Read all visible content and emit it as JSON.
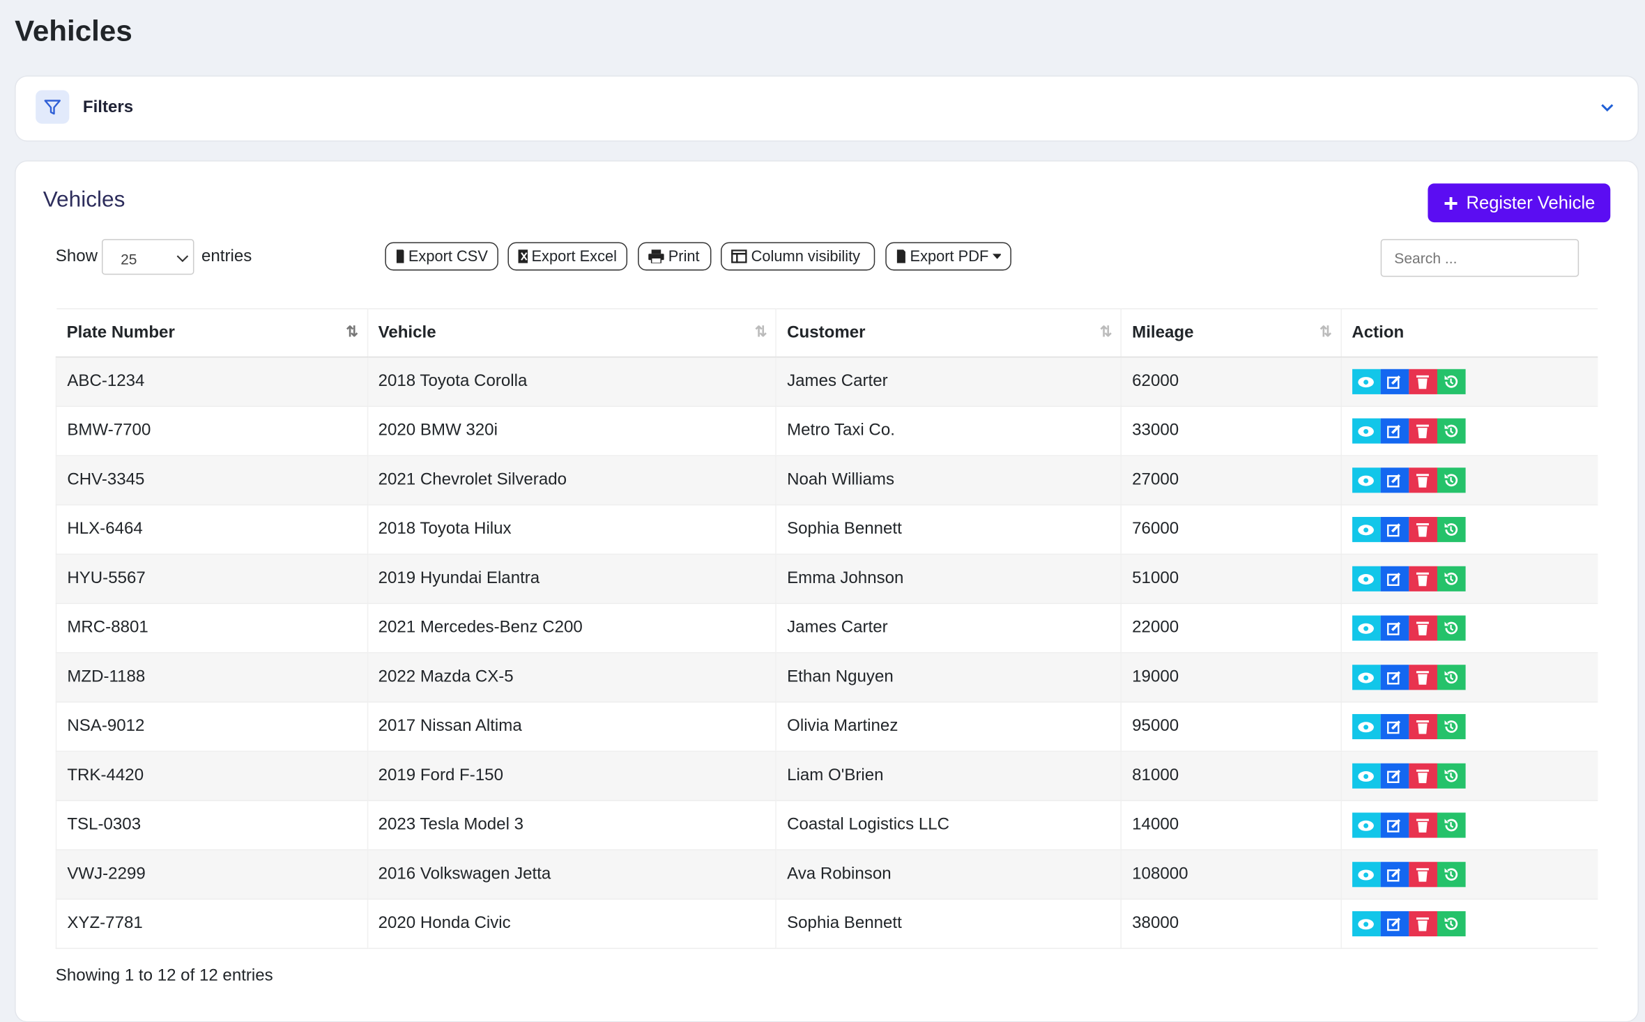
{
  "header": {
    "title": "Vehicles"
  },
  "filters": {
    "label": "Filters"
  },
  "card": {
    "title": "Vehicles",
    "register_button": "Register Vehicle",
    "length": {
      "show": "Show",
      "value": "25",
      "entries": "entries"
    },
    "buttons": [
      "Export CSV",
      "Export Excel",
      "Print",
      "Column visibility",
      "Export PDF"
    ],
    "search_placeholder": "Search ..."
  },
  "table": {
    "headers": [
      "Plate Number",
      "Vehicle",
      "Customer",
      "Mileage",
      "Action"
    ],
    "rows": [
      [
        "ABC-1234",
        "2018 Toyota Corolla",
        "James Carter",
        62000
      ],
      [
        "BMW-7700",
        "2020 BMW 320i",
        "Metro Taxi Co.",
        33000
      ],
      [
        "CHV-3345",
        "2021 Chevrolet Silverado",
        "Noah Williams",
        27000
      ],
      [
        "HLX-6464",
        "2018 Toyota Hilux",
        "Sophia Bennett",
        76000
      ],
      [
        "HYU-5567",
        "2019 Hyundai Elantra",
        "Emma Johnson",
        51000
      ],
      [
        "MRC-8801",
        "2021 Mercedes-Benz C200",
        "James Carter",
        22000
      ],
      [
        "MZD-1188",
        "2022 Mazda CX-5",
        "Ethan Nguyen",
        19000
      ],
      [
        "NSA-9012",
        "2017 Nissan Altima",
        "Olivia Martinez",
        95000
      ],
      [
        "TRK-4420",
        "2019 Ford F-150",
        "Liam O'Brien",
        81000
      ],
      [
        "TSL-0303",
        "2023 Tesla Model 3",
        "Coastal Logistics LLC",
        14000
      ],
      [
        "VWJ-2299",
        "2016 Volkswagen Jetta",
        "Ava Robinson",
        108000
      ],
      [
        "XYZ-7781",
        "2020 Honda Civic",
        "Sophia Bennett",
        38000
      ]
    ],
    "info": "Showing 1 to 12 of 12 entries"
  }
}
